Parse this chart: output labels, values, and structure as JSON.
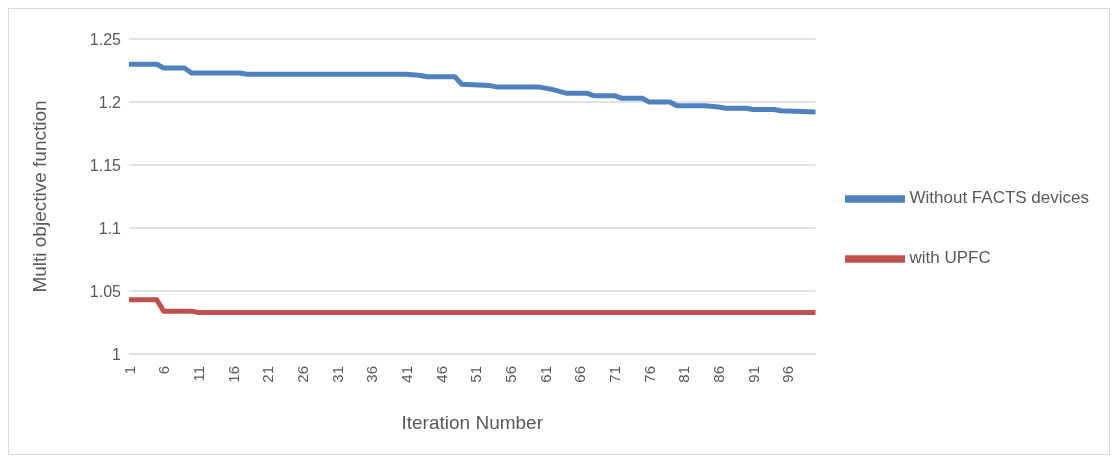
{
  "chart_data": {
    "type": "line",
    "xlabel": "Iteration Number",
    "ylabel": "Multi objective function",
    "xlim": [
      1,
      100
    ],
    "xticks": [
      1,
      6,
      11,
      16,
      21,
      26,
      31,
      36,
      41,
      46,
      51,
      56,
      61,
      66,
      71,
      76,
      81,
      86,
      91,
      96
    ],
    "ylim": [
      1,
      1.25
    ],
    "yticks": [
      1,
      1.05,
      1.1,
      1.15,
      1.2,
      1.25
    ],
    "grid": "y",
    "legend": "right",
    "marker": "none",
    "line_style": "solid",
    "series": [
      {
        "name": "Without FACTS devices",
        "color": "#4f81bd",
        "x": [
          1,
          5,
          6,
          9,
          10,
          17,
          18,
          41,
          43,
          44,
          48,
          49,
          53,
          54,
          60,
          62,
          64,
          67,
          68,
          71,
          72,
          75,
          76,
          79,
          80,
          84,
          86,
          87,
          90,
          91,
          94,
          95,
          100
        ],
        "values": [
          1.23,
          1.23,
          1.227,
          1.227,
          1.223,
          1.223,
          1.222,
          1.222,
          1.221,
          1.22,
          1.22,
          1.214,
          1.213,
          1.212,
          1.212,
          1.21,
          1.207,
          1.207,
          1.205,
          1.205,
          1.203,
          1.203,
          1.2,
          1.2,
          1.197,
          1.197,
          1.196,
          1.195,
          1.195,
          1.194,
          1.194,
          1.193,
          1.192
        ]
      },
      {
        "name": "with UPFC",
        "color": "#c0504d",
        "x": [
          1,
          5,
          6,
          10,
          11,
          100
        ],
        "values": [
          1.043,
          1.043,
          1.034,
          1.034,
          1.033,
          1.033
        ]
      }
    ]
  }
}
